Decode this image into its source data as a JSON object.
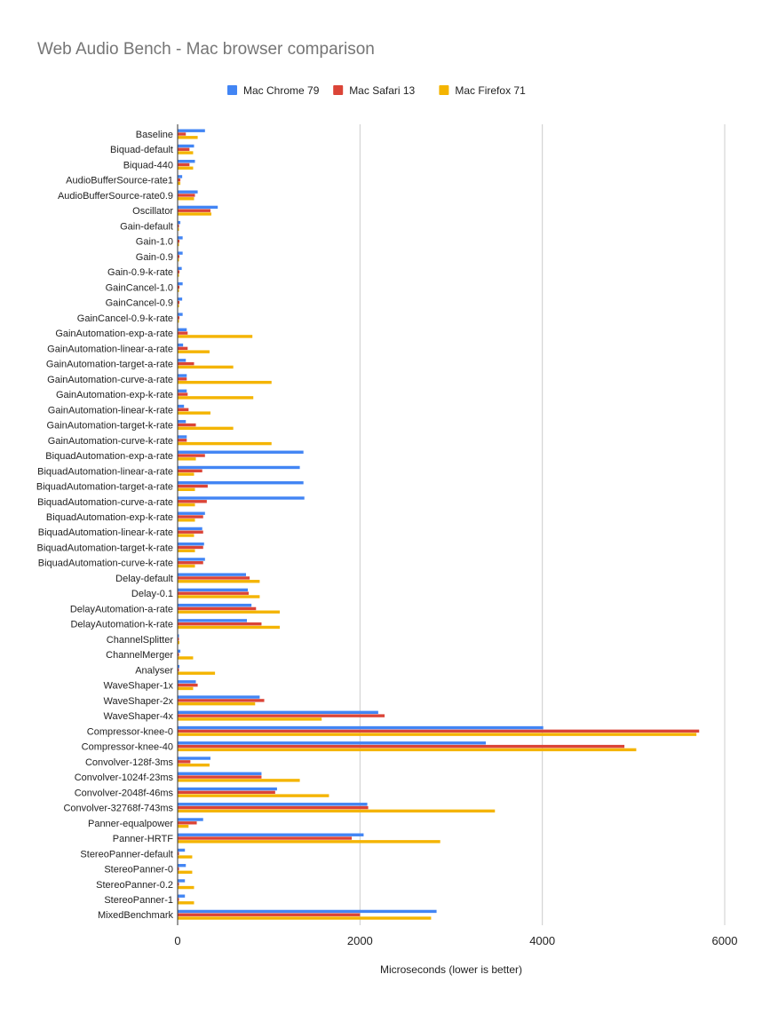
{
  "chart_data": {
    "type": "bar",
    "orientation": "horizontal",
    "title": "Web Audio Bench - Mac browser comparison",
    "xlabel": "Microseconds (lower is better)",
    "ylabel": "",
    "xlim": [
      0,
      6000
    ],
    "xticks": [
      0,
      2000,
      4000,
      6000
    ],
    "grid": true,
    "legend_position": "top",
    "categories": [
      "Baseline",
      "Biquad-default",
      "Biquad-440",
      "AudioBufferSource-rate1",
      "AudioBufferSource-rate0.9",
      "Oscillator",
      "Gain-default",
      "Gain-1.0",
      "Gain-0.9",
      "Gain-0.9-k-rate",
      "GainCancel-1.0",
      "GainCancel-0.9",
      "GainCancel-0.9-k-rate",
      "GainAutomation-exp-a-rate",
      "GainAutomation-linear-a-rate",
      "GainAutomation-target-a-rate",
      "GainAutomation-curve-a-rate",
      "GainAutomation-exp-k-rate",
      "GainAutomation-linear-k-rate",
      "GainAutomation-target-k-rate",
      "GainAutomation-curve-k-rate",
      "BiquadAutomation-exp-a-rate",
      "BiquadAutomation-linear-a-rate",
      "BiquadAutomation-target-a-rate",
      "BiquadAutomation-curve-a-rate",
      "BiquadAutomation-exp-k-rate",
      "BiquadAutomation-linear-k-rate",
      "BiquadAutomation-target-k-rate",
      "BiquadAutomation-curve-k-rate",
      "Delay-default",
      "Delay-0.1",
      "DelayAutomation-a-rate",
      "DelayAutomation-k-rate",
      "ChannelSplitter",
      "ChannelMerger",
      "Analyser",
      "WaveShaper-1x",
      "WaveShaper-2x",
      "WaveShaper-4x",
      "Compressor-knee-0",
      "Compressor-knee-40",
      "Convolver-128f-3ms",
      "Convolver-1024f-23ms",
      "Convolver-2048f-46ms",
      "Convolver-32768f-743ms",
      "Panner-equalpower",
      "Panner-HRTF",
      "StereoPanner-default",
      "StereoPanner-0",
      "StereoPanner-0.2",
      "StereoPanner-1",
      "MixedBenchmark"
    ],
    "series": [
      {
        "name": "Mac Chrome 79",
        "color": "#4285f4",
        "values": [
          300,
          180,
          190,
          50,
          220,
          440,
          30,
          55,
          55,
          45,
          55,
          50,
          55,
          100,
          60,
          90,
          100,
          100,
          70,
          90,
          100,
          1380,
          1340,
          1380,
          1390,
          300,
          270,
          290,
          300,
          750,
          770,
          810,
          760,
          15,
          30,
          20,
          200,
          900,
          2200,
          4010,
          3380,
          360,
          920,
          1090,
          2080,
          280,
          2040,
          80,
          90,
          80,
          80,
          2840
        ]
      },
      {
        "name": "Mac Safari 13",
        "color": "#db4437",
        "values": [
          90,
          130,
          130,
          30,
          190,
          360,
          15,
          20,
          20,
          20,
          20,
          20,
          20,
          110,
          110,
          180,
          100,
          110,
          120,
          200,
          100,
          300,
          270,
          330,
          320,
          280,
          280,
          280,
          280,
          790,
          780,
          860,
          920,
          15,
          15,
          15,
          220,
          950,
          2270,
          5720,
          4900,
          140,
          920,
          1070,
          2090,
          210,
          1910,
          15,
          15,
          15,
          15,
          2000
        ]
      },
      {
        "name": "Mac Firefox 71",
        "color": "#f4b400",
        "values": [
          220,
          170,
          170,
          30,
          180,
          370,
          15,
          15,
          15,
          15,
          15,
          15,
          15,
          820,
          350,
          610,
          1030,
          830,
          360,
          610,
          1030,
          200,
          180,
          190,
          190,
          190,
          180,
          190,
          190,
          900,
          900,
          1120,
          1120,
          20,
          170,
          410,
          170,
          850,
          1580,
          5690,
          5030,
          350,
          1340,
          1660,
          3480,
          120,
          2880,
          160,
          160,
          180,
          180,
          2780
        ]
      }
    ]
  }
}
